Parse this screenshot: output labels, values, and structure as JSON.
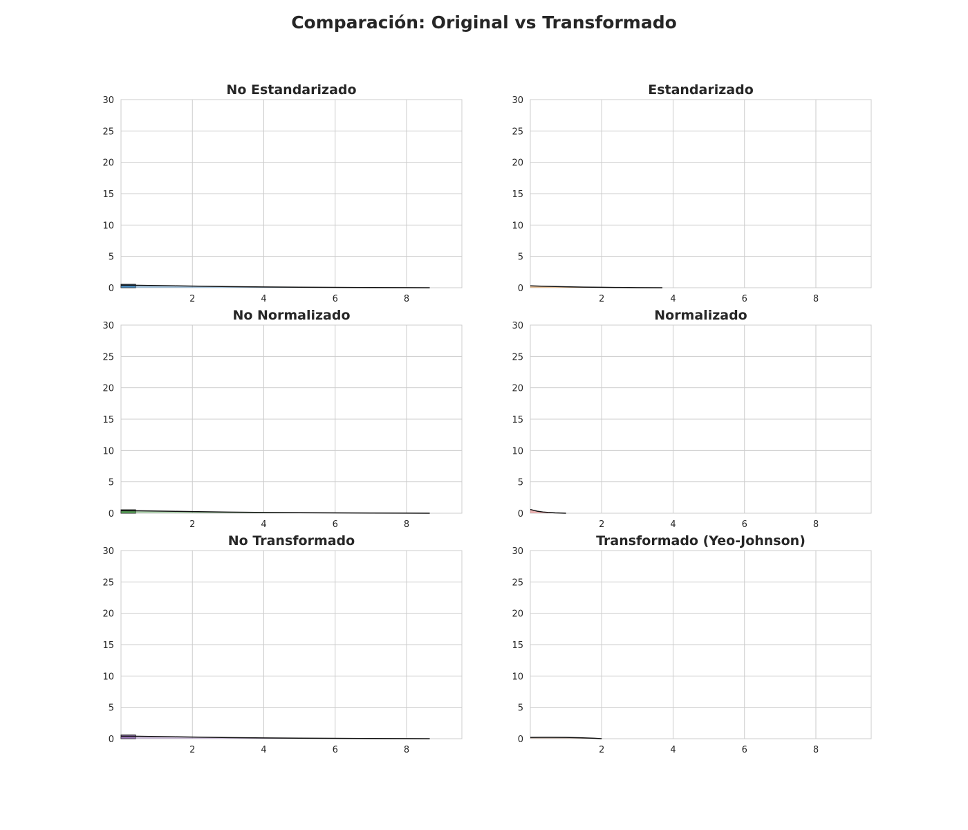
{
  "figure": {
    "title": "Comparación: Original vs Transformado"
  },
  "chart_data": [
    {
      "type": "bar",
      "title": "No Estandarizado",
      "xlabel": "",
      "ylabel": "",
      "xlim": [
        0,
        9.55
      ],
      "ylim": [
        0,
        30
      ],
      "xticks": [
        2,
        4,
        6,
        8
      ],
      "yticks": [
        0,
        5,
        10,
        15,
        20,
        25,
        30
      ],
      "grid": true,
      "bar_color": "#4c8fc4",
      "bars": [
        {
          "x0": 0,
          "x1": 0.41,
          "value": 0.55
        }
      ],
      "kde": {
        "x": [
          0,
          0.5,
          1,
          1.5,
          2,
          2.5,
          3,
          4,
          5,
          6,
          7,
          8,
          8.65
        ],
        "y": [
          0.4,
          0.38,
          0.34,
          0.3,
          0.26,
          0.22,
          0.18,
          0.12,
          0.08,
          0.05,
          0.03,
          0.01,
          0
        ]
      }
    },
    {
      "type": "bar",
      "title": "Estandarizado",
      "xlabel": "",
      "ylabel": "",
      "xlim": [
        0,
        9.55
      ],
      "ylim": [
        0,
        30
      ],
      "xticks": [
        2,
        4,
        6,
        8
      ],
      "yticks": [
        0,
        5,
        10,
        15,
        20,
        25,
        30
      ],
      "grid": true,
      "bar_color": "#e08a2e",
      "bars": [],
      "kde": {
        "x": [
          0,
          0.3,
          0.6,
          1,
          1.5,
          2,
          2.5,
          3,
          3.7
        ],
        "y": [
          0.3,
          0.25,
          0.2,
          0.15,
          0.1,
          0.07,
          0.04,
          0.02,
          0
        ]
      }
    },
    {
      "type": "bar",
      "title": "No Normalizado",
      "xlabel": "",
      "ylabel": "",
      "xlim": [
        0,
        9.55
      ],
      "ylim": [
        0,
        30
      ],
      "xticks": [
        2,
        4,
        6,
        8
      ],
      "yticks": [
        0,
        5,
        10,
        15,
        20,
        25,
        30
      ],
      "grid": true,
      "bar_color": "#5aa55a",
      "bars": [
        {
          "x0": 0,
          "x1": 0.41,
          "value": 0.55
        }
      ],
      "kde": {
        "x": [
          0,
          0.5,
          1,
          1.5,
          2,
          2.5,
          3,
          4,
          5,
          6,
          7,
          8,
          8.65
        ],
        "y": [
          0.4,
          0.38,
          0.34,
          0.3,
          0.26,
          0.22,
          0.18,
          0.12,
          0.08,
          0.05,
          0.03,
          0.01,
          0
        ]
      }
    },
    {
      "type": "bar",
      "title": "Normalizado",
      "xlabel": "",
      "ylabel": "",
      "xlim": [
        0,
        9.55
      ],
      "ylim": [
        0,
        30
      ],
      "xticks": [
        2,
        4,
        6,
        8
      ],
      "yticks": [
        0,
        5,
        10,
        15,
        20,
        25,
        30
      ],
      "grid": true,
      "bar_color": "#d45a5a",
      "bars": [],
      "kde": {
        "x": [
          0,
          0.1,
          0.2,
          0.35,
          0.5,
          0.7,
          1.0
        ],
        "y": [
          0.6,
          0.45,
          0.32,
          0.2,
          0.12,
          0.05,
          0
        ]
      }
    },
    {
      "type": "bar",
      "title": "No Transformado",
      "xlabel": "",
      "ylabel": "",
      "xlim": [
        0,
        9.55
      ],
      "ylim": [
        0,
        30
      ],
      "xticks": [
        2,
        4,
        6,
        8
      ],
      "yticks": [
        0,
        5,
        10,
        15,
        20,
        25,
        30
      ],
      "grid": true,
      "bar_color": "#9b77b8",
      "bars": [
        {
          "x0": 0,
          "x1": 0.41,
          "value": 0.6
        }
      ],
      "kde": {
        "x": [
          0,
          0.5,
          1,
          1.5,
          2,
          2.5,
          3,
          4,
          5,
          6,
          7,
          8,
          8.65
        ],
        "y": [
          0.4,
          0.38,
          0.34,
          0.3,
          0.26,
          0.22,
          0.18,
          0.12,
          0.08,
          0.05,
          0.03,
          0.01,
          0
        ]
      }
    },
    {
      "type": "bar",
      "title": "Transformado (Yeo-Johnson)",
      "xlabel": "",
      "ylabel": "",
      "xlim": [
        0,
        9.55
      ],
      "ylim": [
        0,
        30
      ],
      "xticks": [
        2,
        4,
        6,
        8
      ],
      "yticks": [
        0,
        5,
        10,
        15,
        20,
        25,
        30
      ],
      "grid": true,
      "bar_color": "#8c6d5a",
      "bars": [],
      "kde": {
        "x": [
          0,
          0.3,
          0.6,
          1,
          1.4,
          1.8,
          2.0
        ],
        "y": [
          0.2,
          0.22,
          0.22,
          0.2,
          0.15,
          0.07,
          0
        ]
      }
    }
  ]
}
